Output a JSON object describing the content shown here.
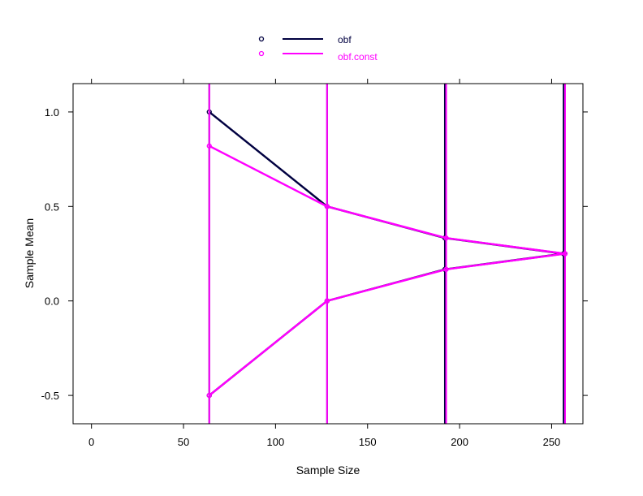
{
  "chart_data": {
    "type": "line",
    "xlabel": "Sample Size",
    "ylabel": "Sample Mean",
    "xlim": [
      -10,
      267
    ],
    "ylim": [
      -0.65,
      1.15
    ],
    "x_ticks": [
      0,
      50,
      100,
      150,
      200,
      250
    ],
    "x_tick_labels": [
      "0",
      "50",
      "100",
      "150",
      "200",
      "250"
    ],
    "y_ticks": [
      -0.5,
      0.0,
      0.5,
      1.0
    ],
    "y_tick_labels": [
      "-0.5",
      "0.0",
      "0.5",
      "1.0"
    ],
    "legend_position": "top",
    "series": [
      {
        "name": "obf",
        "color": "#000040",
        "x": [
          64,
          128,
          192,
          256.5
        ],
        "upper": [
          1.0,
          0.5,
          0.333,
          0.25
        ],
        "lower": [
          -0.5,
          0.0,
          0.167,
          0.25
        ]
      },
      {
        "name": "obf.const",
        "color": "#ff00ff",
        "x": [
          64,
          128,
          192.7,
          257.3
        ],
        "upper": [
          0.82,
          0.5,
          0.333,
          0.25
        ],
        "lower": [
          -0.5,
          0.0,
          0.167,
          0.25
        ]
      }
    ]
  }
}
